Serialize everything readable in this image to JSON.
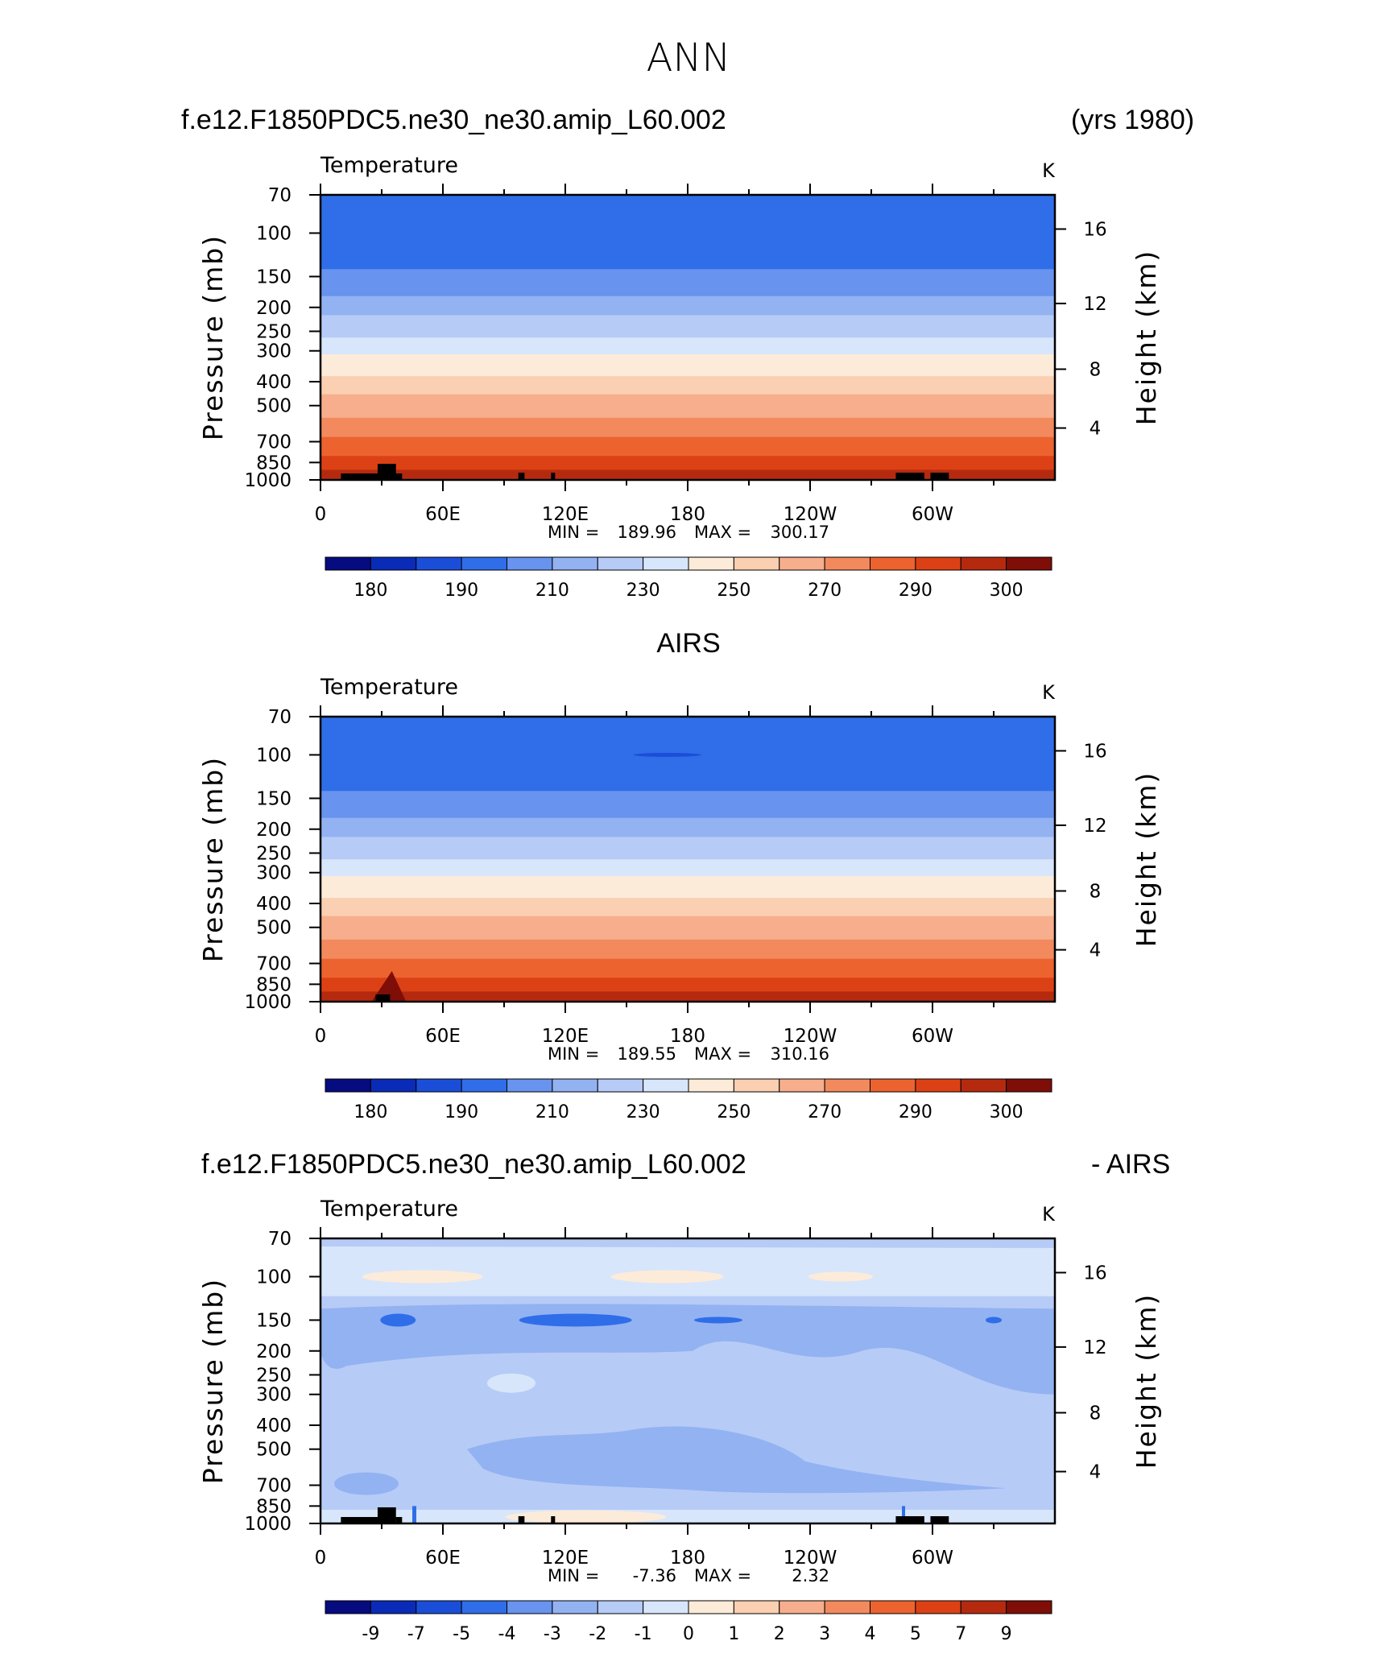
{
  "figure": {
    "title": "ANN",
    "panel1_left": "f.e12.F1850PDC5.ne30_ne30.amip_L60.002",
    "panel1_right": "(yrs 1980)",
    "panel2_title": "AIRS",
    "panel3_left": "f.e12.F1850PDC5.ne30_ne30.amip_L60.002",
    "panel3_right": "- AIRS"
  },
  "chart_data": [
    {
      "type": "heatmap",
      "title": "Temperature",
      "units": "K",
      "ylabel": "Pressure (mb)",
      "ylabel_right": "Height (km)",
      "x_ticks": [
        "0",
        "60E",
        "120E",
        "180",
        "120W",
        "60W"
      ],
      "y_ticks": [
        "70",
        "100",
        "150",
        "200",
        "250",
        "300",
        "400",
        "500",
        "700",
        "850",
        "1000"
      ],
      "y_ticks_right": [
        "16",
        "12",
        "8",
        "4"
      ],
      "ylim": [
        1000,
        70
      ],
      "stats": {
        "min_label": "MIN =",
        "min": "189.96",
        "max_label": "MAX =",
        "max": "300.17"
      },
      "colorbar": {
        "labels": [
          "180",
          "190",
          "210",
          "230",
          "250",
          "270",
          "290",
          "300"
        ],
        "colors": [
          "#060b80",
          "#0a2bb8",
          "#1b4ed8",
          "#2f6ee8",
          "#6893ee",
          "#93b2f2",
          "#b6cbf6",
          "#d8e6fb",
          "#fdebd9",
          "#fbcfb1",
          "#f7ae8c",
          "#f28a5e",
          "#ec6330",
          "#dc4115",
          "#b52a0f",
          "#7e0e07"
        ]
      },
      "levels_by_pressure": [
        {
          "p": 70,
          "band": 3
        },
        {
          "p": 115,
          "band": 3
        },
        {
          "p": 140,
          "band": 4
        },
        {
          "p": 180,
          "band": 5
        },
        {
          "p": 215,
          "band": 6
        },
        {
          "p": 265,
          "band": 7
        },
        {
          "p": 310,
          "band": 8
        },
        {
          "p": 380,
          "band": 9
        },
        {
          "p": 450,
          "band": 10
        },
        {
          "p": 560,
          "band": 11
        },
        {
          "p": 670,
          "band": 12
        },
        {
          "p": 800,
          "band": 13
        },
        {
          "p": 910,
          "band": 14
        },
        {
          "p": 1000,
          "band": 14
        }
      ]
    },
    {
      "type": "heatmap",
      "title": "Temperature",
      "units": "K",
      "ylabel": "Pressure (mb)",
      "ylabel_right": "Height (km)",
      "x_ticks": [
        "0",
        "60E",
        "120E",
        "180",
        "120W",
        "60W"
      ],
      "y_ticks": [
        "70",
        "100",
        "150",
        "200",
        "250",
        "300",
        "400",
        "500",
        "700",
        "850",
        "1000"
      ],
      "y_ticks_right": [
        "16",
        "12",
        "8",
        "4"
      ],
      "ylim": [
        1000,
        70
      ],
      "stats": {
        "min_label": "MIN =",
        "min": "189.55",
        "max_label": "MAX =",
        "max": "310.16"
      },
      "colorbar": {
        "labels": [
          "180",
          "190",
          "210",
          "230",
          "250",
          "270",
          "290",
          "300"
        ],
        "colors": [
          "#060b80",
          "#0a2bb8",
          "#1b4ed8",
          "#2f6ee8",
          "#6893ee",
          "#93b2f2",
          "#b6cbf6",
          "#d8e6fb",
          "#fdebd9",
          "#fbcfb1",
          "#f7ae8c",
          "#f28a5e",
          "#ec6330",
          "#dc4115",
          "#b52a0f",
          "#7e0e07"
        ]
      }
    },
    {
      "type": "heatmap",
      "title": "Temperature",
      "units": "K",
      "ylabel": "Pressure (mb)",
      "ylabel_right": "Height (km)",
      "x_ticks": [
        "0",
        "60E",
        "120E",
        "180",
        "120W",
        "60W"
      ],
      "y_ticks": [
        "70",
        "100",
        "150",
        "200",
        "250",
        "300",
        "400",
        "500",
        "700",
        "850",
        "1000"
      ],
      "y_ticks_right": [
        "16",
        "12",
        "8",
        "4"
      ],
      "ylim": [
        1000,
        70
      ],
      "stats": {
        "min_label": "MIN =",
        "min": "-7.36",
        "max_label": "MAX =",
        "max": "2.32"
      },
      "colorbar": {
        "labels": [
          "-9",
          "-7",
          "-5",
          "-4",
          "-3",
          "-2",
          "-1",
          "0",
          "1",
          "2",
          "3",
          "4",
          "5",
          "7",
          "9"
        ],
        "colors": [
          "#060b80",
          "#0a2bb8",
          "#1b4ed8",
          "#2f6ee8",
          "#6893ee",
          "#93b2f2",
          "#b6cbf6",
          "#d8e6fb",
          "#fdebd9",
          "#fbcfb1",
          "#f7ae8c",
          "#f28a5e",
          "#ec6330",
          "#dc4115",
          "#b52a0f",
          "#7e0e07"
        ]
      }
    }
  ]
}
